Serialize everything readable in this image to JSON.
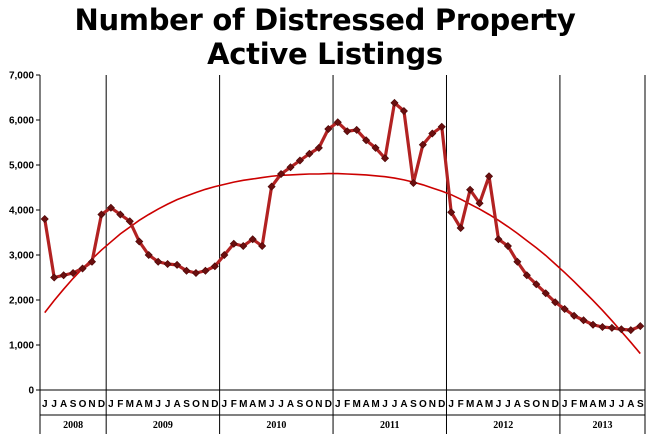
{
  "title_line1": "Number of Distressed Property",
  "title_line2": "Active Listings",
  "chart_data": {
    "type": "line",
    "title": "Number of Distressed Property Active Listings",
    "xlabel": "",
    "ylabel": "",
    "ylim": [
      0,
      7000
    ],
    "y_ticks": [
      "0",
      "1,000",
      "2,000",
      "3,000",
      "4,000",
      "5,000",
      "6,000",
      "7,000"
    ],
    "grid": false,
    "x": [
      "2008-06",
      "2008-07",
      "2008-08",
      "2008-09",
      "2008-10",
      "2008-11",
      "2008-12",
      "2009-01",
      "2009-02",
      "2009-03",
      "2009-04",
      "2009-05",
      "2009-06",
      "2009-07",
      "2009-08",
      "2009-09",
      "2009-10",
      "2009-11",
      "2009-12",
      "2010-01",
      "2010-02",
      "2010-03",
      "2010-04",
      "2010-05",
      "2010-06",
      "2010-07",
      "2010-08",
      "2010-09",
      "2010-10",
      "2010-11",
      "2010-12",
      "2011-01",
      "2011-02",
      "2011-03",
      "2011-04",
      "2011-05",
      "2011-06",
      "2011-07",
      "2011-08",
      "2011-09",
      "2011-10",
      "2011-11",
      "2011-12",
      "2012-01",
      "2012-02",
      "2012-03",
      "2012-04",
      "2012-05",
      "2012-06",
      "2012-07",
      "2012-08",
      "2012-09",
      "2012-10",
      "2012-11",
      "2012-12",
      "2013-01",
      "2013-02",
      "2013-03",
      "2013-04",
      "2013-05",
      "2013-06",
      "2013-07",
      "2013-08",
      "2013-09"
    ],
    "month_labels": [
      "J",
      "J",
      "A",
      "S",
      "O",
      "N",
      "D",
      "J",
      "F",
      "M",
      "A",
      "M",
      "J",
      "J",
      "A",
      "S",
      "O",
      "N",
      "D",
      "J",
      "F",
      "M",
      "A",
      "M",
      "J",
      "J",
      "A",
      "S",
      "O",
      "N",
      "D",
      "J",
      "F",
      "M",
      "A",
      "M",
      "J",
      "J",
      "A",
      "S",
      "O",
      "N",
      "D",
      "J",
      "F",
      "M",
      "A",
      "M",
      "J",
      "J",
      "A",
      "S",
      "O",
      "N",
      "D",
      "J",
      "F",
      "M",
      "A",
      "M",
      "J",
      "J",
      "A",
      "S"
    ],
    "years": [
      {
        "label": "2008",
        "start": 0,
        "end": 7
      },
      {
        "label": "2009",
        "start": 7,
        "end": 19
      },
      {
        "label": "2010",
        "start": 19,
        "end": 31
      },
      {
        "label": "2011",
        "start": 31,
        "end": 43
      },
      {
        "label": "2012",
        "start": 43,
        "end": 55
      },
      {
        "label": "2013",
        "start": 55,
        "end": 64
      }
    ],
    "series": [
      {
        "color": "#b22222",
        "marker": "diamond",
        "values": [
          3800,
          2500,
          2550,
          2600,
          2700,
          2850,
          3900,
          4050,
          3900,
          3750,
          3300,
          3000,
          2850,
          2800,
          2780,
          2650,
          2600,
          2650,
          2750,
          3000,
          3250,
          3200,
          3350,
          3200,
          4520,
          4800,
          4950,
          5100,
          5250,
          5380,
          5800,
          5950,
          5750,
          5780,
          5550,
          5380,
          5150,
          6380,
          6200,
          4600,
          5450,
          5700,
          5850,
          3950,
          3600,
          4450,
          4150,
          4750,
          3350,
          3200,
          2850,
          2550,
          2350,
          2150,
          1950,
          1800,
          1650,
          1550,
          1450,
          1400,
          1380,
          1350,
          1330,
          1420
        ]
      },
      {
        "type": "trendline",
        "color": "#cc0000",
        "kind": "polynomial-2",
        "values": [
          1720,
          1990,
          2240,
          2480,
          2700,
          2910,
          3110,
          3290,
          3470,
          3620,
          3770,
          3900,
          4020,
          4130,
          4230,
          4310,
          4390,
          4460,
          4520,
          4570,
          4620,
          4660,
          4690,
          4720,
          4750,
          4770,
          4780,
          4790,
          4800,
          4800,
          4810,
          4810,
          4800,
          4790,
          4780,
          4760,
          4740,
          4710,
          4670,
          4620,
          4560,
          4490,
          4420,
          4340,
          4240,
          4130,
          4020,
          3900,
          3770,
          3630,
          3480,
          3320,
          3160,
          2990,
          2800,
          2610,
          2410,
          2200,
          1990,
          1770,
          1540,
          1300,
          1060,
          810
        ]
      }
    ]
  }
}
